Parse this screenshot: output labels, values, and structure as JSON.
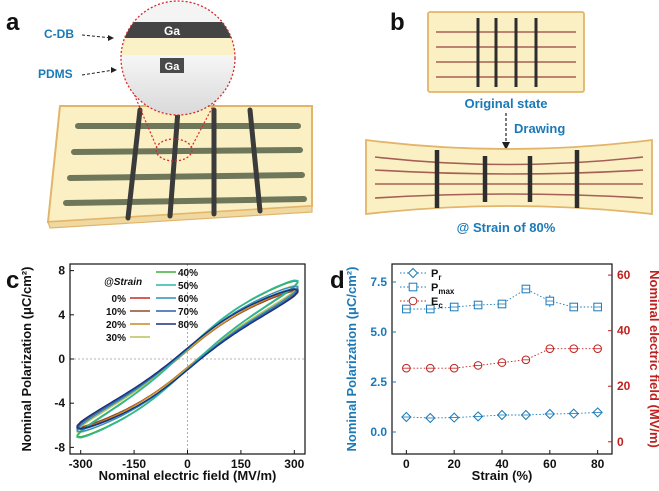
{
  "panels": {
    "a": {
      "letter": "a",
      "callout_top": "Ga",
      "callout_bottom": "Ga",
      "label_cdb": "C-DB",
      "label_pdms": "PDMS"
    },
    "b": {
      "letter": "b",
      "label_original": "Original state",
      "label_drawing": "Drawing",
      "label_strain": "@ Strain of 80%"
    },
    "c": {
      "letter": "c"
    },
    "d": {
      "letter": "d"
    }
  },
  "colors": {
    "accent_blue": "#1a7ab8",
    "accent_red": "#c0201e",
    "substrate": "#fbf0c4",
    "substrate_edge": "#e2b56b",
    "wire_green": "#6f775b",
    "wire_dark": "#3b3b3b"
  },
  "chart_data": [
    {
      "id": "c",
      "type": "line",
      "xlabel": "Nominal electric field (MV/m)",
      "ylabel": "Nominal Polarization (μC/cm²)",
      "xlim": [
        -330,
        330
      ],
      "ylim": [
        -8.6,
        8.6
      ],
      "xticks": [
        -300,
        -150,
        0,
        150,
        300
      ],
      "xtick_labels": [
        "-300",
        "-150",
        "0",
        "150",
        "300"
      ],
      "yticks": [
        -8,
        -4,
        0,
        4,
        8
      ],
      "ytick_labels": [
        "-8",
        "-4",
        "0",
        "4",
        "8"
      ],
      "legend_title": "@Strain",
      "legend_position": "top-left",
      "series": [
        {
          "name": "0%",
          "color": "#cc2a1f",
          "pmax": 6.2,
          "pr": 0.7,
          "emax": 310
        },
        {
          "name": "10%",
          "color": "#8f4b2c",
          "pmax": 6.1,
          "pr": 0.75,
          "emax": 310
        },
        {
          "name": "20%",
          "color": "#c98a1f",
          "pmax": 6.3,
          "pr": 0.7,
          "emax": 310
        },
        {
          "name": "30%",
          "color": "#b8c25a",
          "pmax": 6.6,
          "pr": 0.8,
          "emax": 310
        },
        {
          "name": "40%",
          "color": "#3faf3c",
          "pmax": 7.0,
          "pr": 0.85,
          "emax": 310
        },
        {
          "name": "50%",
          "color": "#2fb6a5",
          "pmax": 7.1,
          "pr": 0.85,
          "emax": 310
        },
        {
          "name": "60%",
          "color": "#2b8fc2",
          "pmax": 6.5,
          "pr": 0.9,
          "emax": 310
        },
        {
          "name": "70%",
          "color": "#2a5ea8",
          "pmax": 6.3,
          "pr": 0.9,
          "emax": 310
        },
        {
          "name": "80%",
          "color": "#18307c",
          "pmax": 6.2,
          "pr": 0.95,
          "emax": 310
        }
      ]
    },
    {
      "id": "d",
      "type": "scatter",
      "xlabel": "Strain (%)",
      "ylabel_left": "Nominal Polarization (μC/cm²)",
      "ylabel_right": "Nominal electric field (MV/m)",
      "xlim": [
        -6,
        86
      ],
      "xticks": [
        0,
        20,
        40,
        60,
        80
      ],
      "ylim_left": [
        -1.1,
        8.4
      ],
      "yticks_left": [
        0.0,
        2.5,
        5.0,
        7.5
      ],
      "ytick_labels_left": [
        "0.0",
        "2.5",
        "5.0",
        "7.5"
      ],
      "ylim_right": [
        -4.4,
        64
      ],
      "yticks_right": [
        0,
        20,
        40,
        60
      ],
      "ytick_labels_right": [
        "0",
        "20",
        "40",
        "60"
      ],
      "legend_position": "top-left",
      "x": [
        0,
        10,
        20,
        30,
        40,
        50,
        60,
        70,
        80
      ],
      "series": [
        {
          "name": "Pr",
          "legend_main": "P",
          "legend_sub": "r",
          "axis": "left",
          "marker": "diamond",
          "color": "#1a7ab8",
          "values": [
            0.75,
            0.7,
            0.72,
            0.78,
            0.85,
            0.85,
            0.9,
            0.92,
            0.98
          ],
          "errors": [
            0.1,
            0.1,
            0.1,
            0.1,
            0.1,
            0.1,
            0.1,
            0.1,
            0.12
          ]
        },
        {
          "name": "Pmax",
          "legend_main": "P",
          "legend_sub": "max",
          "axis": "left",
          "marker": "square",
          "color": "#1a7ab8",
          "values": [
            6.15,
            6.15,
            6.25,
            6.35,
            6.4,
            7.15,
            6.55,
            6.25,
            6.25
          ],
          "errors": [
            0.12,
            0.12,
            0.12,
            0.12,
            0.12,
            0.15,
            0.25,
            0.12,
            0.12
          ]
        },
        {
          "name": "Ec",
          "legend_main": "E",
          "legend_sub": "c",
          "axis": "right",
          "marker": "circle",
          "color": "#c0201e",
          "values": [
            26.5,
            26.5,
            26.5,
            27.5,
            28.5,
            29.5,
            33.5,
            33.5,
            33.5
          ],
          "errors": [
            0.8,
            0.8,
            0.8,
            0.8,
            0.8,
            0.8,
            0.8,
            0.8,
            0.8
          ]
        }
      ]
    }
  ]
}
